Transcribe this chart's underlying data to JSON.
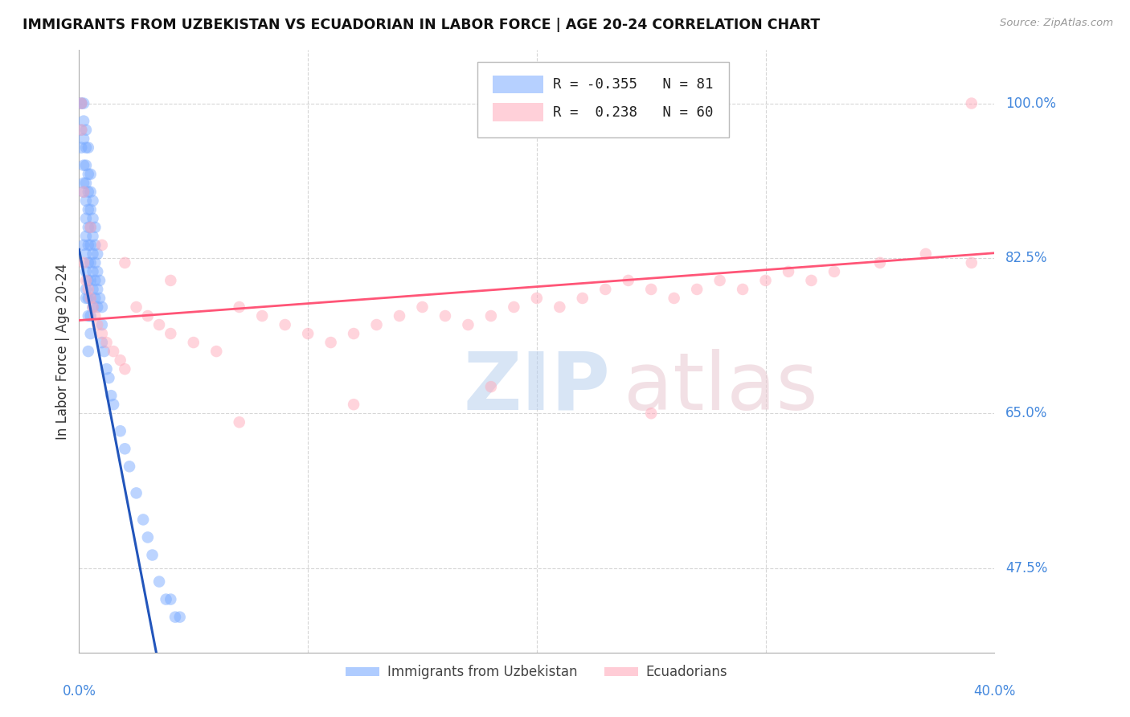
{
  "title": "IMMIGRANTS FROM UZBEKISTAN VS ECUADORIAN IN LABOR FORCE | AGE 20-24 CORRELATION CHART",
  "source": "Source: ZipAtlas.com",
  "ylabel": "In Labor Force | Age 20-24",
  "ytick_labels": [
    "100.0%",
    "82.5%",
    "65.0%",
    "47.5%"
  ],
  "ytick_values": [
    1.0,
    0.825,
    0.65,
    0.475
  ],
  "xtick_labels": [
    "0.0%",
    "40.0%"
  ],
  "xtick_values": [
    0.0,
    0.4
  ],
  "xmin": 0.0,
  "xmax": 0.4,
  "ymin": 0.38,
  "ymax": 1.06,
  "r_uzbekistan": -0.355,
  "n_uzbekistan": 81,
  "r_ecuadorian": 0.238,
  "n_ecuadorian": 60,
  "uzbekistan_color": "#7aabff",
  "ecuadorian_color": "#ffaabb",
  "uzbekistan_line_color": "#2255bb",
  "ecuadorian_line_color": "#ff5577",
  "legend_label_uzbekistan": "Immigrants from Uzbekistan",
  "legend_label_ecuadorian": "Ecuadorians",
  "background_color": "#ffffff",
  "grid_color": "#cccccc",
  "axis_label_color": "#4488dd",
  "title_color": "#111111",
  "uz_line_y0": 0.835,
  "uz_line_slope": -13.5,
  "uz_solid_xend": 0.047,
  "ec_line_y0": 0.755,
  "ec_line_slope": 0.19,
  "uz_x": [
    0.001,
    0.001,
    0.001,
    0.001,
    0.002,
    0.002,
    0.002,
    0.002,
    0.002,
    0.002,
    0.003,
    0.003,
    0.003,
    0.003,
    0.003,
    0.003,
    0.003,
    0.003,
    0.003,
    0.003,
    0.004,
    0.004,
    0.004,
    0.004,
    0.004,
    0.004,
    0.004,
    0.004,
    0.004,
    0.004,
    0.005,
    0.005,
    0.005,
    0.005,
    0.005,
    0.005,
    0.005,
    0.005,
    0.005,
    0.005,
    0.006,
    0.006,
    0.006,
    0.006,
    0.006,
    0.006,
    0.006,
    0.007,
    0.007,
    0.007,
    0.007,
    0.007,
    0.008,
    0.008,
    0.008,
    0.008,
    0.009,
    0.009,
    0.01,
    0.01,
    0.01,
    0.011,
    0.012,
    0.013,
    0.014,
    0.015,
    0.018,
    0.02,
    0.022,
    0.025,
    0.028,
    0.03,
    0.032,
    0.035,
    0.038,
    0.04,
    0.042,
    0.044,
    0.002,
    0.003,
    0.004
  ],
  "uz_y": [
    1.0,
    1.0,
    0.97,
    0.95,
    1.0,
    0.98,
    0.96,
    0.93,
    0.91,
    0.9,
    0.97,
    0.95,
    0.93,
    0.91,
    0.89,
    0.87,
    0.85,
    0.83,
    0.81,
    0.79,
    0.95,
    0.92,
    0.9,
    0.88,
    0.86,
    0.84,
    0.82,
    0.8,
    0.78,
    0.76,
    0.92,
    0.9,
    0.88,
    0.86,
    0.84,
    0.82,
    0.8,
    0.78,
    0.76,
    0.74,
    0.89,
    0.87,
    0.85,
    0.83,
    0.81,
    0.79,
    0.77,
    0.86,
    0.84,
    0.82,
    0.8,
    0.78,
    0.83,
    0.81,
    0.79,
    0.77,
    0.8,
    0.78,
    0.77,
    0.75,
    0.73,
    0.72,
    0.7,
    0.69,
    0.67,
    0.66,
    0.63,
    0.61,
    0.59,
    0.56,
    0.53,
    0.51,
    0.49,
    0.46,
    0.44,
    0.44,
    0.42,
    0.42,
    0.84,
    0.78,
    0.72
  ],
  "ec_x": [
    0.001,
    0.001,
    0.002,
    0.003,
    0.004,
    0.005,
    0.006,
    0.007,
    0.008,
    0.01,
    0.012,
    0.015,
    0.018,
    0.02,
    0.025,
    0.03,
    0.035,
    0.04,
    0.05,
    0.06,
    0.07,
    0.08,
    0.09,
    0.1,
    0.11,
    0.12,
    0.13,
    0.14,
    0.15,
    0.16,
    0.17,
    0.18,
    0.19,
    0.2,
    0.21,
    0.22,
    0.23,
    0.24,
    0.25,
    0.26,
    0.27,
    0.28,
    0.29,
    0.3,
    0.31,
    0.32,
    0.33,
    0.35,
    0.37,
    0.39,
    0.002,
    0.005,
    0.01,
    0.02,
    0.04,
    0.07,
    0.12,
    0.18,
    0.25,
    0.39
  ],
  "ec_y": [
    0.97,
    1.0,
    0.82,
    0.8,
    0.79,
    0.78,
    0.77,
    0.76,
    0.75,
    0.74,
    0.73,
    0.72,
    0.71,
    0.7,
    0.77,
    0.76,
    0.75,
    0.74,
    0.73,
    0.72,
    0.77,
    0.76,
    0.75,
    0.74,
    0.73,
    0.74,
    0.75,
    0.76,
    0.77,
    0.76,
    0.75,
    0.76,
    0.77,
    0.78,
    0.77,
    0.78,
    0.79,
    0.8,
    0.79,
    0.78,
    0.79,
    0.8,
    0.79,
    0.8,
    0.81,
    0.8,
    0.81,
    0.82,
    0.83,
    0.82,
    0.9,
    0.86,
    0.84,
    0.82,
    0.8,
    0.64,
    0.66,
    0.68,
    0.65,
    1.0
  ]
}
